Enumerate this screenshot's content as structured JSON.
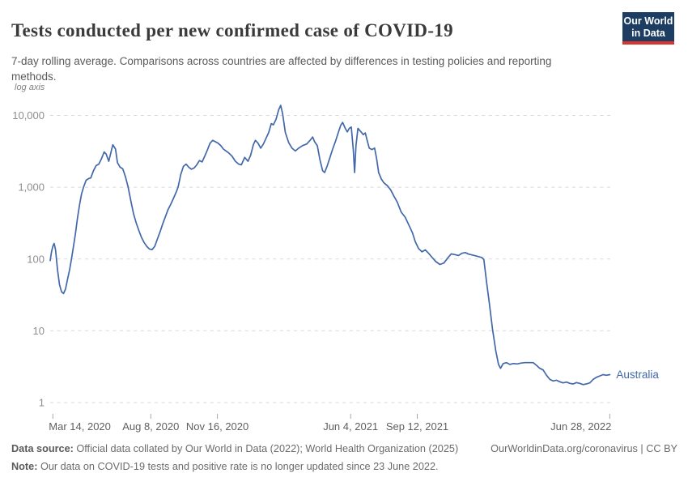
{
  "header": {
    "title": "Tests conducted per new confirmed case of COVID-19",
    "subtitle": "7-day rolling average. Comparisons across countries are affected by differences in testing policies and reporting methods.",
    "logo": {
      "line1": "Our World",
      "line2": "in Data",
      "bg_color": "#1d3d63",
      "stripe_color": "#d8352f"
    }
  },
  "chart_data": {
    "type": "line",
    "title": "Tests conducted per new confirmed case of COVID-19",
    "y_axis_note": "log axis",
    "y_scale": "log",
    "grid": true,
    "legend_position": "inline-right-of-line",
    "x_domain": [
      "2020-03-10",
      "2022-06-30"
    ],
    "y_domain": [
      1,
      16000
    ],
    "y_gridlines": [
      {
        "value": 1,
        "label": "1"
      },
      {
        "value": 10,
        "label": "10"
      },
      {
        "value": 100,
        "label": "100"
      },
      {
        "value": 1000,
        "label": "1,000"
      },
      {
        "value": 10000,
        "label": "10,000"
      }
    ],
    "x_ticks": [
      {
        "date": "2020-03-14",
        "label": "Mar 14, 2020",
        "align": "start"
      },
      {
        "date": "2020-08-08",
        "label": "Aug 8, 2020",
        "align": "middle"
      },
      {
        "date": "2020-11-16",
        "label": "Nov 16, 2020",
        "align": "middle"
      },
      {
        "date": "2021-06-04",
        "label": "Jun 4, 2021",
        "align": "middle"
      },
      {
        "date": "2021-09-12",
        "label": "Sep 12, 2021",
        "align": "middle"
      },
      {
        "date": "2022-06-28",
        "label": "Jun 28, 2022",
        "align": "end"
      }
    ],
    "series": [
      {
        "name": "Australia",
        "color": "#4268aa",
        "points": [
          [
            "2020-03-10",
            95
          ],
          [
            "2020-03-12",
            125
          ],
          [
            "2020-03-14",
            150
          ],
          [
            "2020-03-16",
            165
          ],
          [
            "2020-03-18",
            135
          ],
          [
            "2020-03-21",
            70
          ],
          [
            "2020-03-24",
            44
          ],
          [
            "2020-03-27",
            35
          ],
          [
            "2020-03-30",
            33
          ],
          [
            "2020-04-02",
            38
          ],
          [
            "2020-04-05",
            52
          ],
          [
            "2020-04-08",
            70
          ],
          [
            "2020-04-11",
            100
          ],
          [
            "2020-04-14",
            150
          ],
          [
            "2020-04-17",
            230
          ],
          [
            "2020-04-20",
            370
          ],
          [
            "2020-04-23",
            560
          ],
          [
            "2020-04-26",
            800
          ],
          [
            "2020-04-29",
            1000
          ],
          [
            "2020-05-03",
            1250
          ],
          [
            "2020-05-07",
            1320
          ],
          [
            "2020-05-10",
            1350
          ],
          [
            "2020-05-14",
            1700
          ],
          [
            "2020-05-18",
            2000
          ],
          [
            "2020-05-22",
            2100
          ],
          [
            "2020-05-26",
            2500
          ],
          [
            "2020-05-30",
            3100
          ],
          [
            "2020-06-02",
            2900
          ],
          [
            "2020-06-06",
            2300
          ],
          [
            "2020-06-09",
            3000
          ],
          [
            "2020-06-12",
            3900
          ],
          [
            "2020-06-16",
            3400
          ],
          [
            "2020-06-19",
            2200
          ],
          [
            "2020-06-23",
            1900
          ],
          [
            "2020-06-27",
            1800
          ],
          [
            "2020-07-01",
            1400
          ],
          [
            "2020-07-05",
            1000
          ],
          [
            "2020-07-09",
            650
          ],
          [
            "2020-07-13",
            430
          ],
          [
            "2020-07-17",
            320
          ],
          [
            "2020-07-21",
            250
          ],
          [
            "2020-07-25",
            200
          ],
          [
            "2020-07-29",
            170
          ],
          [
            "2020-08-02",
            150
          ],
          [
            "2020-08-06",
            138
          ],
          [
            "2020-08-10",
            135
          ],
          [
            "2020-08-14",
            150
          ],
          [
            "2020-08-18",
            190
          ],
          [
            "2020-08-22",
            240
          ],
          [
            "2020-08-26",
            310
          ],
          [
            "2020-08-30",
            390
          ],
          [
            "2020-09-03",
            490
          ],
          [
            "2020-09-07",
            580
          ],
          [
            "2020-09-11",
            700
          ],
          [
            "2020-09-15",
            850
          ],
          [
            "2020-09-18",
            1000
          ],
          [
            "2020-09-22",
            1500
          ],
          [
            "2020-09-26",
            1950
          ],
          [
            "2020-09-30",
            2100
          ],
          [
            "2020-10-04",
            1900
          ],
          [
            "2020-10-08",
            1780
          ],
          [
            "2020-10-12",
            1850
          ],
          [
            "2020-10-16",
            2050
          ],
          [
            "2020-10-20",
            2350
          ],
          [
            "2020-10-24",
            2250
          ],
          [
            "2020-10-28",
            2700
          ],
          [
            "2020-11-01",
            3300
          ],
          [
            "2020-11-05",
            4100
          ],
          [
            "2020-11-09",
            4500
          ],
          [
            "2020-11-13",
            4300
          ],
          [
            "2020-11-17",
            4100
          ],
          [
            "2020-11-21",
            3800
          ],
          [
            "2020-11-25",
            3400
          ],
          [
            "2020-11-29",
            3200
          ],
          [
            "2020-12-03",
            3000
          ],
          [
            "2020-12-08",
            2700
          ],
          [
            "2020-12-13",
            2300
          ],
          [
            "2020-12-18",
            2100
          ],
          [
            "2020-12-22",
            2050
          ],
          [
            "2020-12-27",
            2600
          ],
          [
            "2021-01-01",
            2300
          ],
          [
            "2021-01-05",
            2800
          ],
          [
            "2021-01-09",
            3900
          ],
          [
            "2021-01-12",
            4500
          ],
          [
            "2021-01-16",
            4100
          ],
          [
            "2021-01-20",
            3500
          ],
          [
            "2021-01-24",
            4000
          ],
          [
            "2021-01-28",
            4800
          ],
          [
            "2021-02-01",
            5800
          ],
          [
            "2021-02-05",
            7700
          ],
          [
            "2021-02-08",
            7400
          ],
          [
            "2021-02-12",
            8800
          ],
          [
            "2021-02-16",
            12000
          ],
          [
            "2021-02-19",
            13800
          ],
          [
            "2021-02-22",
            10500
          ],
          [
            "2021-02-26",
            5800
          ],
          [
            "2021-03-03",
            4200
          ],
          [
            "2021-03-08",
            3500
          ],
          [
            "2021-03-13",
            3200
          ],
          [
            "2021-03-18",
            3500
          ],
          [
            "2021-03-24",
            3800
          ],
          [
            "2021-03-30",
            4000
          ],
          [
            "2021-04-05",
            4600
          ],
          [
            "2021-04-08",
            5000
          ],
          [
            "2021-04-11",
            4300
          ],
          [
            "2021-04-15",
            3800
          ],
          [
            "2021-04-19",
            2400
          ],
          [
            "2021-04-23",
            1700
          ],
          [
            "2021-04-26",
            1600
          ],
          [
            "2021-04-30",
            2000
          ],
          [
            "2021-05-04",
            2600
          ],
          [
            "2021-05-08",
            3400
          ],
          [
            "2021-05-12",
            4300
          ],
          [
            "2021-05-16",
            5600
          ],
          [
            "2021-05-20",
            7200
          ],
          [
            "2021-05-23",
            8000
          ],
          [
            "2021-05-27",
            6600
          ],
          [
            "2021-05-30",
            5900
          ],
          [
            "2021-06-02",
            6600
          ],
          [
            "2021-06-05",
            6900
          ],
          [
            "2021-06-08",
            3300
          ],
          [
            "2021-06-10",
            1600
          ],
          [
            "2021-06-12",
            3800
          ],
          [
            "2021-06-15",
            6600
          ],
          [
            "2021-06-19",
            6000
          ],
          [
            "2021-06-23",
            5400
          ],
          [
            "2021-06-26",
            5700
          ],
          [
            "2021-06-29",
            4400
          ],
          [
            "2021-07-02",
            3500
          ],
          [
            "2021-07-06",
            3350
          ],
          [
            "2021-07-10",
            3500
          ],
          [
            "2021-07-13",
            2500
          ],
          [
            "2021-07-16",
            1600
          ],
          [
            "2021-07-20",
            1300
          ],
          [
            "2021-07-24",
            1150
          ],
          [
            "2021-07-29",
            1050
          ],
          [
            "2021-08-03",
            920
          ],
          [
            "2021-08-08",
            750
          ],
          [
            "2021-08-13",
            620
          ],
          [
            "2021-08-19",
            450
          ],
          [
            "2021-08-25",
            380
          ],
          [
            "2021-08-31",
            290
          ],
          [
            "2021-09-05",
            230
          ],
          [
            "2021-09-09",
            175
          ],
          [
            "2021-09-14",
            140
          ],
          [
            "2021-09-19",
            126
          ],
          [
            "2021-09-24",
            134
          ],
          [
            "2021-09-29",
            120
          ],
          [
            "2021-10-04",
            106
          ],
          [
            "2021-10-10",
            92
          ],
          [
            "2021-10-16",
            84
          ],
          [
            "2021-10-22",
            88
          ],
          [
            "2021-10-28",
            104
          ],
          [
            "2021-11-02",
            118
          ],
          [
            "2021-11-08",
            115
          ],
          [
            "2021-11-13",
            112
          ],
          [
            "2021-11-18",
            120
          ],
          [
            "2021-11-23",
            123
          ],
          [
            "2021-11-28",
            117
          ],
          [
            "2021-12-03",
            114
          ],
          [
            "2021-12-08",
            111
          ],
          [
            "2021-12-13",
            108
          ],
          [
            "2021-12-18",
            105
          ],
          [
            "2021-12-21",
            98
          ],
          [
            "2021-12-25",
            48
          ],
          [
            "2021-12-29",
            25
          ],
          [
            "2022-01-03",
            10.5
          ],
          [
            "2022-01-08",
            5.2
          ],
          [
            "2022-01-12",
            3.4
          ],
          [
            "2022-01-15",
            3.0
          ],
          [
            "2022-01-19",
            3.5
          ],
          [
            "2022-01-24",
            3.6
          ],
          [
            "2022-01-29",
            3.4
          ],
          [
            "2022-02-03",
            3.5
          ],
          [
            "2022-02-09",
            3.45
          ],
          [
            "2022-02-15",
            3.55
          ],
          [
            "2022-02-21",
            3.6
          ],
          [
            "2022-02-27",
            3.6
          ],
          [
            "2022-03-05",
            3.6
          ],
          [
            "2022-03-10",
            3.3
          ],
          [
            "2022-03-15",
            3.0
          ],
          [
            "2022-03-20",
            2.85
          ],
          [
            "2022-03-25",
            2.4
          ],
          [
            "2022-03-30",
            2.1
          ],
          [
            "2022-04-04",
            2.0
          ],
          [
            "2022-04-09",
            2.05
          ],
          [
            "2022-04-14",
            1.95
          ],
          [
            "2022-04-19",
            1.88
          ],
          [
            "2022-04-24",
            1.93
          ],
          [
            "2022-04-29",
            1.85
          ],
          [
            "2022-05-04",
            1.82
          ],
          [
            "2022-05-09",
            1.9
          ],
          [
            "2022-05-14",
            1.85
          ],
          [
            "2022-05-19",
            1.78
          ],
          [
            "2022-05-24",
            1.82
          ],
          [
            "2022-05-29",
            1.88
          ],
          [
            "2022-06-03",
            2.1
          ],
          [
            "2022-06-08",
            2.25
          ],
          [
            "2022-06-13",
            2.35
          ],
          [
            "2022-06-18",
            2.45
          ],
          [
            "2022-06-23",
            2.4
          ],
          [
            "2022-06-28",
            2.45
          ]
        ]
      }
    ]
  },
  "footer": {
    "source_label": "Data source:",
    "source_text": " Official data collated by Our World in Data (2022); World Health Organization (2025)",
    "link_text": "OurWorldinData.org/coronavirus | CC BY",
    "note_label": "Note:",
    "note_text": " Our data on COVID-19 tests and positive rate is no longer updated since 23 June 2022."
  }
}
